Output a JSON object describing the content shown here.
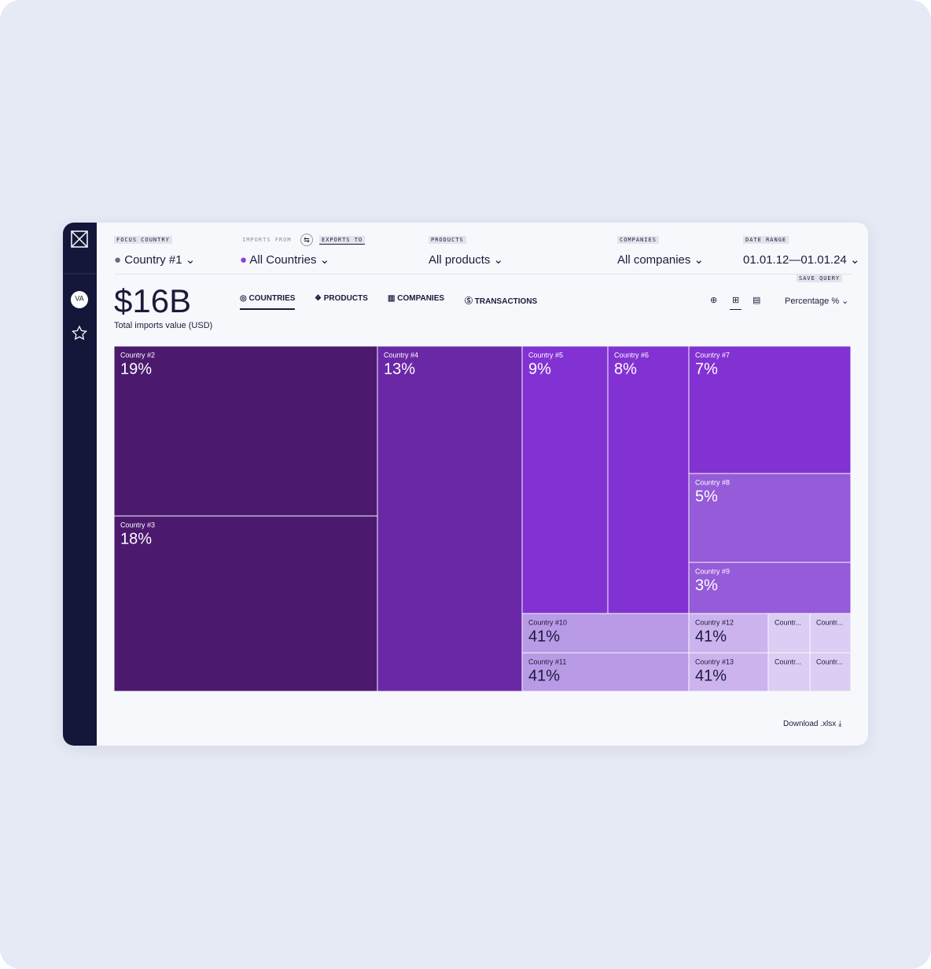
{
  "sidebar": {
    "avatar": "VA"
  },
  "filters": {
    "focus_country": {
      "label": "FOCUS COUNTRY",
      "value": "Country #1"
    },
    "direction": {
      "label_a": "IMPORTS FROM",
      "label_b": "EXPORTS TO",
      "value": "All Countries"
    },
    "products": {
      "label": "PRODUCTS",
      "value": "All products"
    },
    "companies": {
      "label": "COMPANIES",
      "value": "All companies"
    },
    "date_range": {
      "label": "DATE RANGE",
      "value": "01.01.12—01.01.24"
    }
  },
  "save_query": "SAVE QUERY",
  "total": {
    "value": "$16B",
    "label": "Total imports value (USD)"
  },
  "tabs": [
    "COUNTRIES",
    "PRODUCTS",
    "COMPANIES",
    "TRANSACTIONS"
  ],
  "view_select": "Percentage %",
  "download": "Download .xlsx",
  "chart_data": {
    "type": "treemap",
    "categories": [
      "Country #2",
      "Country #3",
      "Country #4",
      "Country #5",
      "Country #6",
      "Country #7",
      "Country #8",
      "Country #9",
      "Country #10",
      "Country #11",
      "Country #12",
      "Country #13",
      "Countr...",
      "Countr...",
      "Countr...",
      "Countr..."
    ],
    "values": [
      19,
      18,
      13,
      9,
      8,
      7,
      5,
      3,
      41,
      41,
      41,
      41,
      null,
      null,
      null,
      null
    ],
    "value_labels": [
      "19%",
      "18%",
      "13%",
      "9%",
      "8%",
      "7%",
      "5%",
      "3%",
      "41%",
      "41%",
      "41%",
      "41%",
      null,
      null,
      null,
      null
    ],
    "colors": [
      "#4b1a6e",
      "#4b1a6e",
      "#6a28a6",
      "#8232d2",
      "#8232d2",
      "#8232d2",
      "#955bd8",
      "#955bd8",
      "#b99ae6",
      "#b99ae6",
      "#ccb3ee",
      "#ccb3ee",
      "#dccdf4",
      "#dccdf4",
      "#dccdf4",
      "#dccdf4"
    ]
  }
}
